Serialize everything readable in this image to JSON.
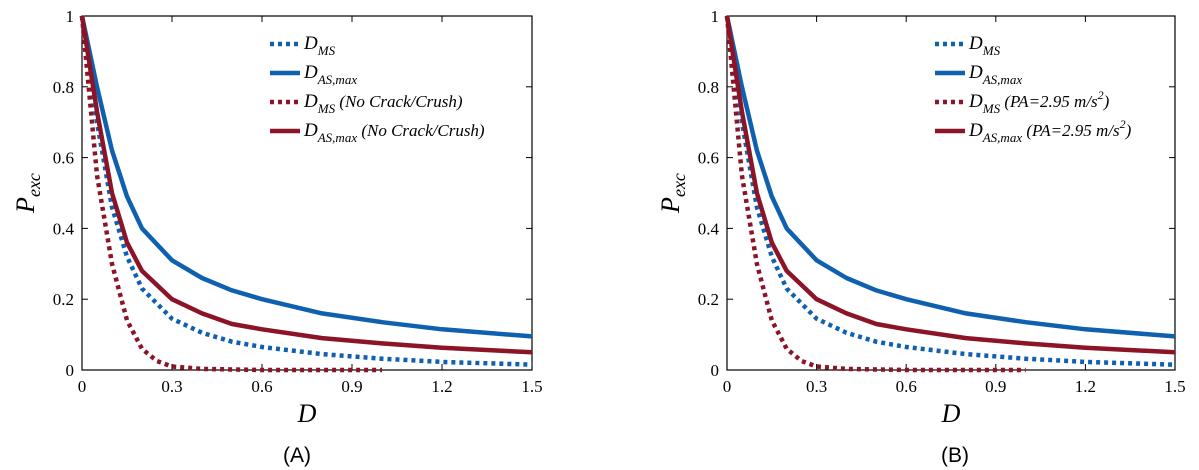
{
  "colors": {
    "blue": "#1060b0",
    "red": "#8b1426"
  },
  "chart_data": [
    {
      "type": "line",
      "panel_label": "(A)",
      "xlabel": "D",
      "ylabel": {
        "main": "P",
        "sub": "exc"
      },
      "xlim": [
        0,
        1.5
      ],
      "ylim": [
        0,
        1
      ],
      "xticks": [
        "0",
        "0.3",
        "0.6",
        "0.9",
        "1.2",
        "1.5"
      ],
      "yticks": [
        "0",
        "0.2",
        "0.4",
        "0.6",
        "0.8",
        "1"
      ],
      "legend_position": "top-right",
      "series": [
        {
          "name": "D_MS",
          "legend": {
            "main": "D",
            "sub": "MS",
            "suffix": ""
          },
          "color": "blue",
          "dashed": true,
          "x": [
            0,
            0.05,
            0.1,
            0.15,
            0.2,
            0.3,
            0.4,
            0.5,
            0.6,
            0.8,
            1.0,
            1.2,
            1.5
          ],
          "y": [
            1.0,
            0.7,
            0.46,
            0.32,
            0.23,
            0.145,
            0.105,
            0.08,
            0.065,
            0.045,
            0.032,
            0.023,
            0.015
          ]
        },
        {
          "name": "D_AS,max",
          "legend": {
            "main": "D",
            "sub": "AS,max",
            "suffix": ""
          },
          "color": "blue",
          "dashed": false,
          "x": [
            0,
            0.05,
            0.1,
            0.15,
            0.2,
            0.3,
            0.4,
            0.5,
            0.6,
            0.8,
            1.0,
            1.2,
            1.5
          ],
          "y": [
            1.0,
            0.8,
            0.62,
            0.49,
            0.4,
            0.31,
            0.26,
            0.225,
            0.2,
            0.16,
            0.135,
            0.115,
            0.095
          ]
        },
        {
          "name": "D_MS (No Crack/Crush)",
          "legend": {
            "main": "D",
            "sub": "MS",
            "suffix": " (No Crack/Crush)"
          },
          "color": "red",
          "dashed": true,
          "x": [
            0,
            0.05,
            0.1,
            0.15,
            0.2,
            0.25,
            0.3,
            0.4,
            0.6,
            1.0
          ],
          "y": [
            1.0,
            0.55,
            0.3,
            0.14,
            0.06,
            0.025,
            0.01,
            0.003,
            0.0,
            0.0
          ]
        },
        {
          "name": "D_AS,max (No Crack/Crush)",
          "legend": {
            "main": "D",
            "sub": "AS,max",
            "suffix": " (No Crack/Crush)"
          },
          "color": "red",
          "dashed": false,
          "x": [
            0,
            0.05,
            0.1,
            0.15,
            0.2,
            0.3,
            0.4,
            0.5,
            0.6,
            0.8,
            1.0,
            1.2,
            1.5
          ],
          "y": [
            1.0,
            0.73,
            0.5,
            0.36,
            0.28,
            0.2,
            0.16,
            0.13,
            0.115,
            0.09,
            0.075,
            0.063,
            0.05
          ]
        }
      ]
    },
    {
      "type": "line",
      "panel_label": "(B)",
      "xlabel": "D",
      "ylabel": {
        "main": "P",
        "sub": "exc"
      },
      "xlim": [
        0,
        1.5
      ],
      "ylim": [
        0,
        1
      ],
      "xticks": [
        "0",
        "0.3",
        "0.6",
        "0.9",
        "1.2",
        "1.5"
      ],
      "yticks": [
        "0",
        "0.2",
        "0.4",
        "0.6",
        "0.8",
        "1"
      ],
      "legend_position": "top-right",
      "series": [
        {
          "name": "D_MS",
          "legend": {
            "main": "D",
            "sub": "MS",
            "suffix": ""
          },
          "color": "blue",
          "dashed": true,
          "x": [
            0,
            0.05,
            0.1,
            0.15,
            0.2,
            0.3,
            0.4,
            0.5,
            0.6,
            0.8,
            1.0,
            1.2,
            1.5
          ],
          "y": [
            1.0,
            0.7,
            0.46,
            0.32,
            0.23,
            0.145,
            0.105,
            0.08,
            0.065,
            0.045,
            0.032,
            0.023,
            0.015
          ]
        },
        {
          "name": "D_AS,max",
          "legend": {
            "main": "D",
            "sub": "AS,max",
            "suffix": ""
          },
          "color": "blue",
          "dashed": false,
          "x": [
            0,
            0.05,
            0.1,
            0.15,
            0.2,
            0.3,
            0.4,
            0.5,
            0.6,
            0.8,
            1.0,
            1.2,
            1.5
          ],
          "y": [
            1.0,
            0.8,
            0.62,
            0.49,
            0.4,
            0.31,
            0.26,
            0.225,
            0.2,
            0.16,
            0.135,
            0.115,
            0.095
          ]
        },
        {
          "name": "D_MS (PA=2.95 m/s^2)",
          "legend": {
            "main": "D",
            "sub": "MS",
            "suffix": " (PA=2.95 m/s",
            "sup": "2",
            "close": ")"
          },
          "color": "red",
          "dashed": true,
          "x": [
            0,
            0.05,
            0.1,
            0.15,
            0.2,
            0.25,
            0.3,
            0.4,
            0.6,
            1.0
          ],
          "y": [
            1.0,
            0.55,
            0.3,
            0.14,
            0.06,
            0.025,
            0.01,
            0.003,
            0.0,
            0.0
          ]
        },
        {
          "name": "D_AS,max (PA=2.95 m/s^2)",
          "legend": {
            "main": "D",
            "sub": "AS,max",
            "suffix": " (PA=2.95 m/s",
            "sup": "2",
            "close": ")"
          },
          "color": "red",
          "dashed": false,
          "x": [
            0,
            0.05,
            0.1,
            0.15,
            0.2,
            0.3,
            0.4,
            0.5,
            0.6,
            0.8,
            1.0,
            1.2,
            1.5
          ],
          "y": [
            1.0,
            0.73,
            0.5,
            0.36,
            0.28,
            0.2,
            0.16,
            0.13,
            0.115,
            0.09,
            0.075,
            0.063,
            0.05
          ]
        }
      ]
    }
  ]
}
